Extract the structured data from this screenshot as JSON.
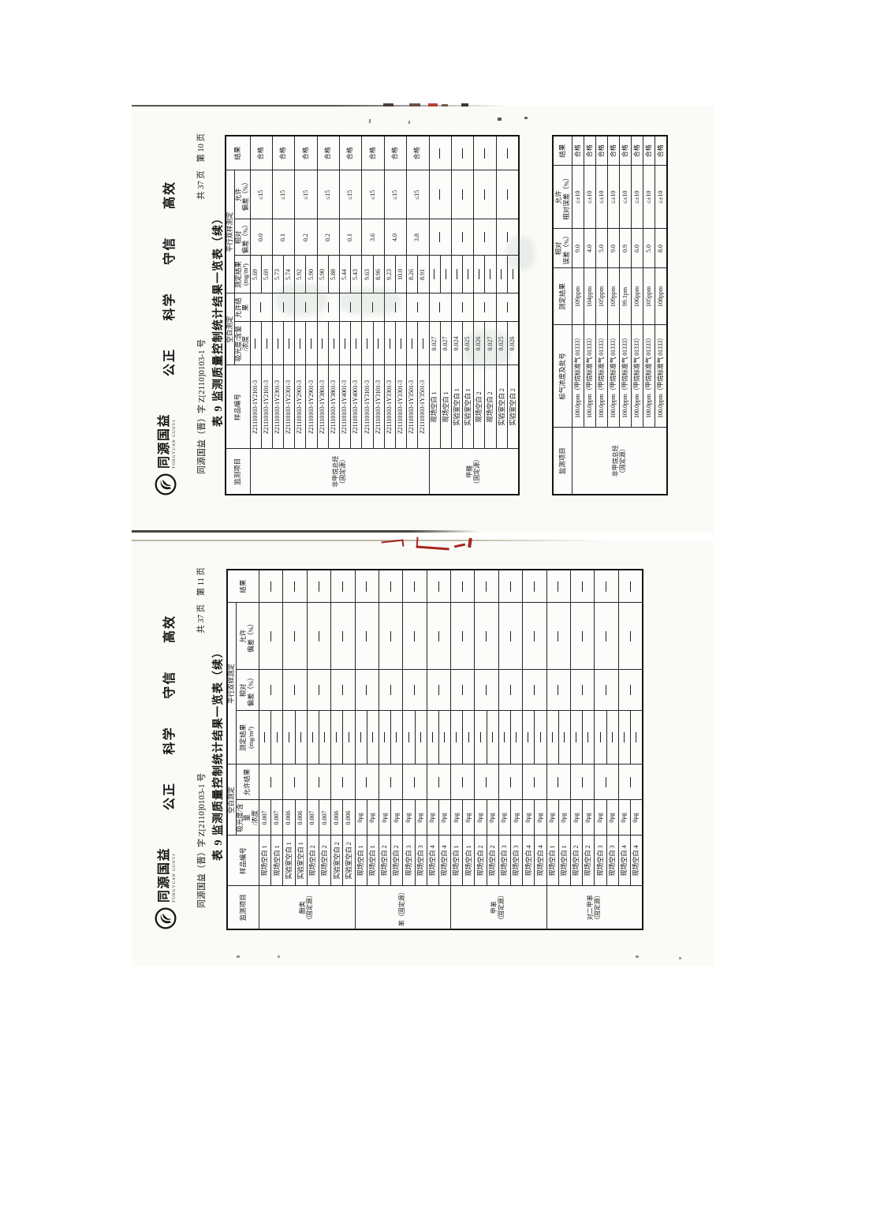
{
  "pages": [
    {
      "page_label": "共 37 页　第 10 页",
      "org_line": "同源国益（晋）字 Z[2110]0103-1 号",
      "logo": {
        "name": "同源国益",
        "sub": "TONGYUAN GUOYI"
      },
      "slogans": [
        "公正",
        "科学",
        "守信",
        "高效"
      ],
      "title": "表 9  监测质量控制统计结果一览表（续）",
      "table1": {
        "headers": {
          "item": "监测项目",
          "sample": "样品编号",
          "blank_group": "空白测定",
          "abs": "吸光度/含量\n/浓度",
          "allow_blank": "允许结果",
          "parallel_group": "平行双样测定",
          "meas": "测定结果\n(mg/m³)",
          "rel": "相对\n偏差（%）",
          "allow_dev": "允许\n偏差（%）",
          "verdict": "结果"
        },
        "groups": [
          {
            "item": "非甲烷总烃\n（固定源）",
            "pairs": [
              {
                "sample": "Z21110103-1Y2101-3",
                "abs": [
                  "—",
                  "—"
                ],
                "allow_blank": "—",
                "meas": [
                  "5.69",
                  "5.69"
                ],
                "rel": "0.0",
                "allow_dev": "≤15",
                "verdict": "合格"
              },
              {
                "sample": "Z21110103-1Y2301-3",
                "abs": [
                  "—",
                  "—"
                ],
                "allow_blank": "—",
                "meas": [
                  "5.73",
                  "5.74"
                ],
                "rel": "0.1",
                "allow_dev": "≤15",
                "verdict": "合格"
              },
              {
                "sample": "Z21110103-1Y2901-3",
                "abs": [
                  "—",
                  "—"
                ],
                "allow_blank": "—",
                "meas": [
                  "5.92",
                  "5.90"
                ],
                "rel": "0.2",
                "allow_dev": "≤15",
                "verdict": "合格"
              },
              {
                "sample": "Z21110103-1Y3801-3",
                "abs": [
                  "—",
                  "—"
                ],
                "allow_blank": "—",
                "meas": [
                  "5.90",
                  "5.88"
                ],
                "rel": "0.2",
                "allow_dev": "≤15",
                "verdict": "合格"
              },
              {
                "sample": "Z21110103-1Y4001-3",
                "abs": [
                  "—",
                  "—"
                ],
                "allow_blank": "—",
                "meas": [
                  "5.44",
                  "5.43"
                ],
                "rel": "0.1",
                "allow_dev": "≤15",
                "verdict": "合格"
              },
              {
                "sample": "Z21110103-1Y3101-3",
                "abs": [
                  "—",
                  "—"
                ],
                "allow_blank": "—",
                "meas": [
                  "9.63",
                  "8.96"
                ],
                "rel": "3.6",
                "allow_dev": "≤15",
                "verdict": "合格"
              },
              {
                "sample": "Z21110103-1Y3301-3",
                "abs": [
                  "—",
                  "—"
                ],
                "allow_blank": "—",
                "meas": [
                  "9.23",
                  "10.0"
                ],
                "rel": "4.0",
                "allow_dev": "≤15",
                "verdict": "合格"
              },
              {
                "sample": "Z21110103-1Y3501-3",
                "abs": [
                  "—",
                  "—"
                ],
                "allow_blank": "—",
                "meas": [
                  "8.26",
                  "8.91"
                ],
                "rel": "3.8",
                "allow_dev": "≤15",
                "verdict": "合格"
              }
            ]
          },
          {
            "item": "甲醛\n（固定源）",
            "pairs": [
              {
                "sample": "现场空白 1",
                "abs": [
                  "0.027",
                  "0.027"
                ],
                "allow_blank": "—",
                "meas": [
                  "—",
                  "—"
                ],
                "rel": "—",
                "allow_dev": "—",
                "verdict": "—"
              },
              {
                "sample": "实验室空白 1",
                "abs": [
                  "0.024",
                  "0.025"
                ],
                "allow_blank": "—",
                "meas": [
                  "—",
                  "—"
                ],
                "rel": "—",
                "allow_dev": "—",
                "verdict": "—"
              },
              {
                "sample": "现场空白 2",
                "abs": [
                  "0.026",
                  "0.027"
                ],
                "allow_blank": "—",
                "meas": [
                  "—",
                  "—"
                ],
                "rel": "—",
                "allow_dev": "—",
                "verdict": "—"
              },
              {
                "sample": "实验室空白 2",
                "abs": [
                  "0.025",
                  "0.026"
                ],
                "allow_blank": "—",
                "meas": [
                  "—",
                  "—"
                ],
                "rel": "—",
                "allow_dev": "—",
                "verdict": "—"
              }
            ]
          }
        ]
      },
      "table2": {
        "headers": {
          "item": "监测项目",
          "std": "标气浓度及批号",
          "result": "测定结果",
          "err": "相对\n误差（%）",
          "allow": "允许\n相对误差（%）",
          "verdict": "结果"
        },
        "item": "非甲烷总烃\n（固定源）",
        "rows": [
          {
            "std": "100.0ppm（甲烷标准气 01333）",
            "result": "109ppm",
            "err": "9.0",
            "allow": "≤±10",
            "verdict": "合格"
          },
          {
            "std": "100.0ppm（甲烷标准气 01333）",
            "result": "104ppm",
            "err": "4.0",
            "allow": "≤±10",
            "verdict": "合格"
          },
          {
            "std": "100.0ppm（甲烷标准气 01333）",
            "result": "105ppm",
            "err": "5.0",
            "allow": "≤±10",
            "verdict": "合格"
          },
          {
            "std": "100.0ppm（甲烷标准气 01333）",
            "result": "109ppm",
            "err": "9.0",
            "allow": "≤±10",
            "verdict": "合格"
          },
          {
            "std": "100.0ppm（甲烷标准气 01333）",
            "result": "99.1pm",
            "err": "0.9",
            "allow": "≤±10",
            "verdict": "合格"
          },
          {
            "std": "100.0ppm（甲烷标准气 01333）",
            "result": "106ppm",
            "err": "6.0",
            "allow": "≤±10",
            "verdict": "合格"
          },
          {
            "std": "100.0ppm（甲烷标准气 01333）",
            "result": "105ppm",
            "err": "5.0",
            "allow": "≤±10",
            "verdict": "合格"
          },
          {
            "std": "100.0ppm（甲烷标准气 01333）",
            "result": "108ppm",
            "err": "8.0",
            "allow": "≤±10",
            "verdict": "合格"
          }
        ]
      }
    },
    {
      "page_label": "共 37 页　第 11 页",
      "org_line": "同源国益（晋）字 Z[2110]0103-1 号",
      "logo": {
        "name": "同源国益",
        "sub": "TONGYUAN GUOYI"
      },
      "slogans": [
        "公正",
        "科学",
        "守信",
        "高效"
      ],
      "title": "表 9  监测质量控制统计结果一览表（续）",
      "table1": {
        "headers": {
          "item": "监测项目",
          "sample": "样品编号",
          "blank_group": "空白测定",
          "abs": "吸光度/含量\n/浓度",
          "allow_blank": "允许结果",
          "parallel_group": "平行双样测定",
          "meas": "测定结果\n(mg/m³)",
          "rel": "相对\n偏差（%）",
          "allow_dev": "允许\n偏差（%）",
          "verdict": "结果"
        },
        "groups": [
          {
            "item": "酚类\n（固定源）",
            "pairs": [
              {
                "sample": "现场空白 1",
                "abs": [
                  "0.007",
                  "0.007"
                ],
                "allow_blank": "—",
                "meas": [
                  "—",
                  "—"
                ],
                "rel": "—",
                "allow_dev": "—",
                "verdict": "—"
              },
              {
                "sample": "实验室空白 1",
                "abs": [
                  "0.006",
                  "0.006"
                ],
                "allow_blank": "—",
                "meas": [
                  "—",
                  "—"
                ],
                "rel": "—",
                "allow_dev": "—",
                "verdict": "—"
              },
              {
                "sample": "现场空白 2",
                "abs": [
                  "0.007",
                  "0.007"
                ],
                "allow_blank": "—",
                "meas": [
                  "—",
                  "—"
                ],
                "rel": "—",
                "allow_dev": "—",
                "verdict": "—"
              },
              {
                "sample": "实验室空白 2",
                "abs": [
                  "0.006",
                  "0.006"
                ],
                "allow_blank": "—",
                "meas": [
                  "—",
                  "—"
                ],
                "rel": "—",
                "allow_dev": "—",
                "verdict": "—"
              }
            ]
          },
          {
            "item": "苯（固定源）",
            "pairs": [
              {
                "sample": "现场空白 1",
                "abs": [
                  "0μg",
                  "0μg"
                ],
                "allow_blank": "—",
                "meas": [
                  "—",
                  "—"
                ],
                "rel": "—",
                "allow_dev": "—",
                "verdict": "—"
              },
              {
                "sample": "现场空白 2",
                "abs": [
                  "0μg",
                  "0μg"
                ],
                "allow_blank": "—",
                "meas": [
                  "—",
                  "—"
                ],
                "rel": "—",
                "allow_dev": "—",
                "verdict": "—"
              },
              {
                "sample": "现场空白 3",
                "abs": [
                  "0μg",
                  "0μg"
                ],
                "allow_blank": "—",
                "meas": [
                  "—",
                  "—"
                ],
                "rel": "—",
                "allow_dev": "—",
                "verdict": "—"
              },
              {
                "sample": "现场空白 4",
                "abs": [
                  "0μg",
                  "0μg"
                ],
                "allow_blank": "—",
                "meas": [
                  "—",
                  "—"
                ],
                "rel": "—",
                "allow_dev": "—",
                "verdict": "—"
              }
            ]
          },
          {
            "item": "甲苯\n（固定源）",
            "pairs": [
              {
                "sample": "现场空白 1",
                "abs": [
                  "0μg",
                  "0μg"
                ],
                "allow_blank": "—",
                "meas": [
                  "—",
                  "—"
                ],
                "rel": "—",
                "allow_dev": "—",
                "verdict": "—"
              },
              {
                "sample": "现场空白 2",
                "abs": [
                  "0μg",
                  "0μg"
                ],
                "allow_blank": "—",
                "meas": [
                  "—",
                  "—"
                ],
                "rel": "—",
                "allow_dev": "—",
                "verdict": "—"
              },
              {
                "sample": "现场空白 3",
                "abs": [
                  "0μg",
                  "0μg"
                ],
                "allow_blank": "—",
                "meas": [
                  "—",
                  "—"
                ],
                "rel": "—",
                "allow_dev": "—",
                "verdict": "—"
              },
              {
                "sample": "现场空白 4",
                "abs": [
                  "0μg",
                  "0μg"
                ],
                "allow_blank": "—",
                "meas": [
                  "—",
                  "—"
                ],
                "rel": "—",
                "allow_dev": "—",
                "verdict": "—"
              }
            ]
          },
          {
            "item": "对二甲苯\n（固定源）",
            "pairs": [
              {
                "sample": "现场空白 1",
                "abs": [
                  "0μg",
                  "0μg"
                ],
                "allow_blank": "—",
                "meas": [
                  "—",
                  "—"
                ],
                "rel": "—",
                "allow_dev": "—",
                "verdict": "—"
              },
              {
                "sample": "现场空白 2",
                "abs": [
                  "0μg",
                  "0μg"
                ],
                "allow_blank": "—",
                "meas": [
                  "—",
                  "—"
                ],
                "rel": "—",
                "allow_dev": "—",
                "verdict": "—"
              },
              {
                "sample": "现场空白 3",
                "abs": [
                  "0μg",
                  "0μg"
                ],
                "allow_blank": "—",
                "meas": [
                  "—",
                  "—"
                ],
                "rel": "—",
                "allow_dev": "—",
                "verdict": "—"
              },
              {
                "sample": "现场空白 4",
                "abs": [
                  "0μg",
                  "0μg"
                ],
                "allow_blank": "—",
                "meas": [
                  "—",
                  "—"
                ],
                "rel": "—",
                "allow_dev": "—",
                "verdict": "—"
              }
            ]
          }
        ]
      },
      "table2": null
    }
  ]
}
